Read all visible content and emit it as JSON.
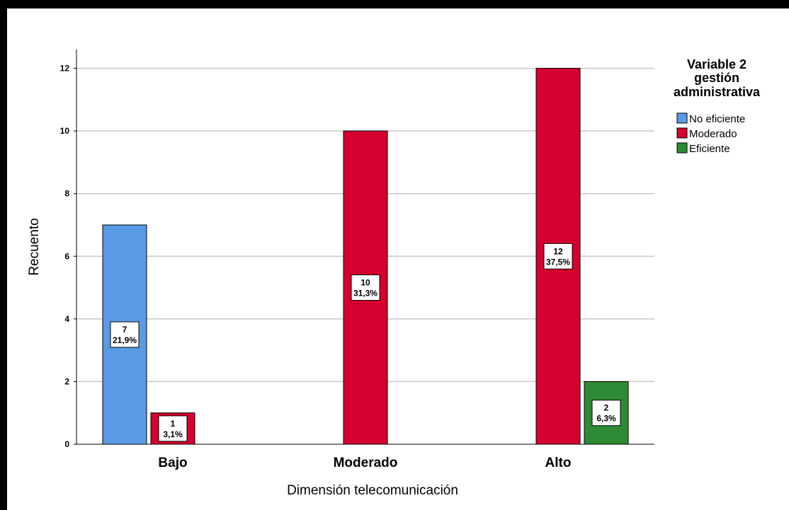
{
  "chart_data": {
    "type": "bar",
    "categories": [
      "Bajo",
      "Moderado",
      "Alto"
    ],
    "series": [
      {
        "name": "No eficiente",
        "color": "#5b9be6",
        "values": [
          7,
          null,
          null
        ],
        "percents": [
          "21,9%",
          null,
          null
        ]
      },
      {
        "name": "Moderado",
        "color": "#d6002e",
        "values": [
          1,
          10,
          12
        ],
        "percents": [
          "3,1%",
          "31,3%",
          "37,5%"
        ]
      },
      {
        "name": "Eficiente",
        "color": "#2e8b35",
        "values": [
          null,
          null,
          2
        ],
        "percents": [
          null,
          null,
          "6,3%"
        ]
      }
    ],
    "xlabel": "Dimensión telecomunicación",
    "ylabel": "Recuento",
    "ylim": [
      0,
      12.6
    ],
    "yticks": [
      0,
      2,
      4,
      6,
      8,
      10,
      12
    ],
    "grid": true,
    "legend": {
      "title_lines": [
        "Variable 2",
        "gestión",
        "administrativa"
      ],
      "placement": "right"
    }
  }
}
